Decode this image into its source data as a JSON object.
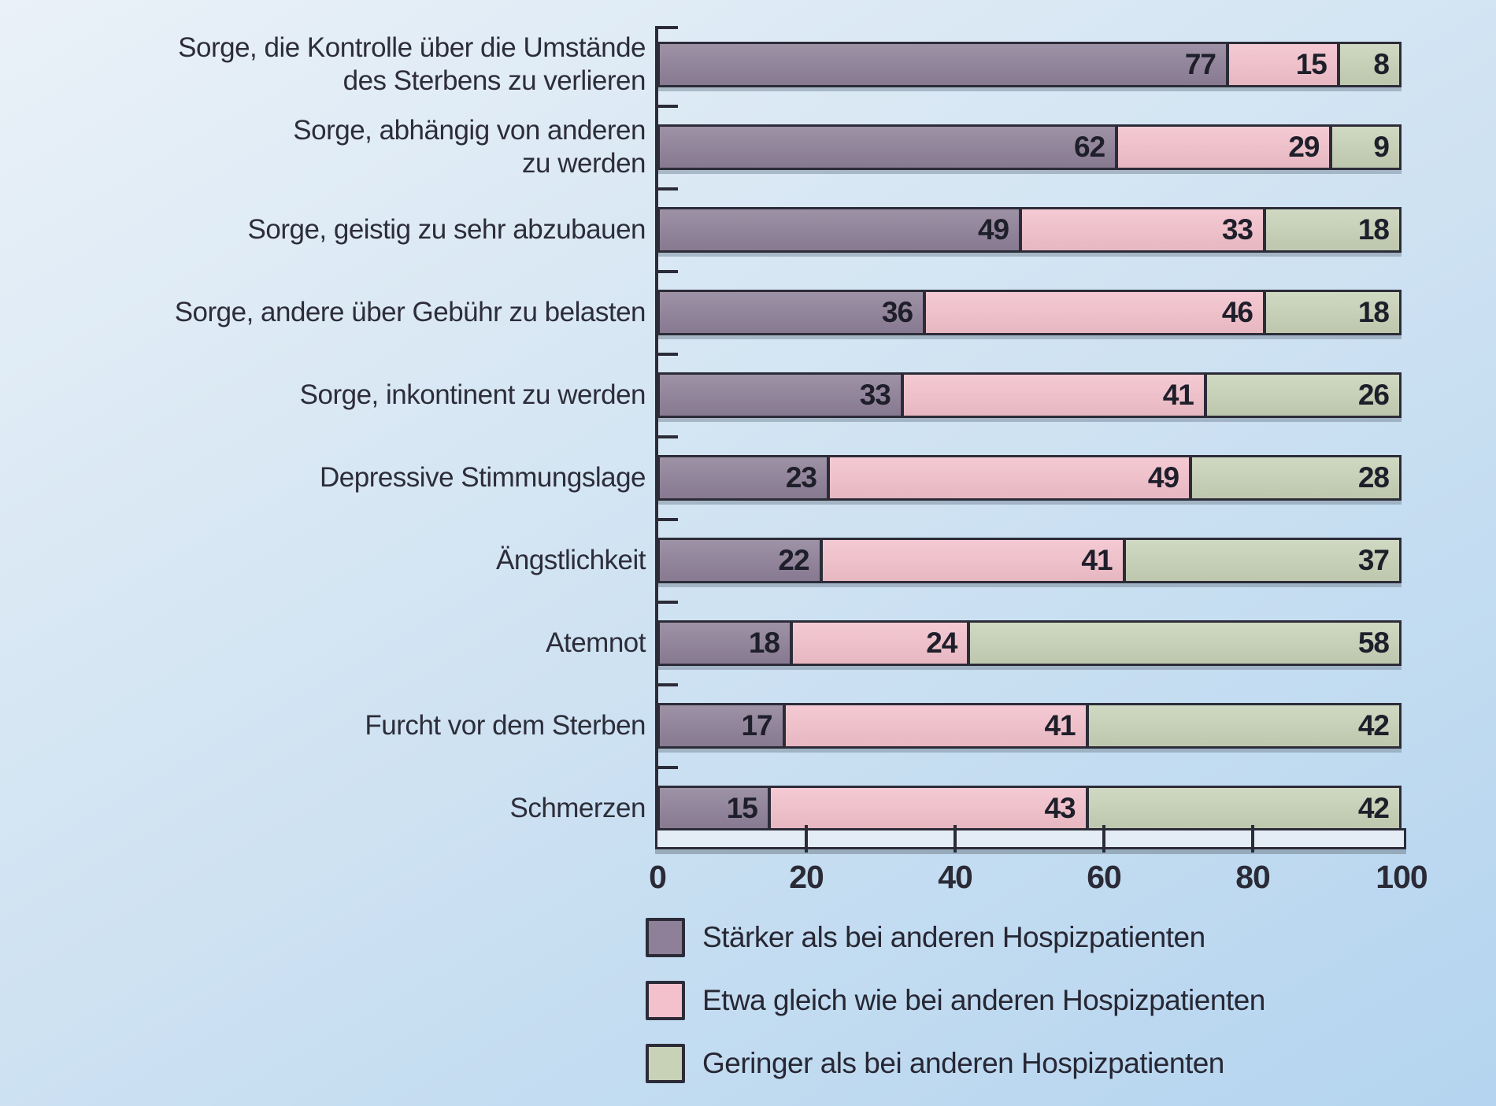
{
  "chart_data": {
    "type": "bar",
    "orientation": "horizontal",
    "stacked": true,
    "title": "",
    "xlabel": "",
    "ylabel": "",
    "xlim": [
      0,
      100
    ],
    "x_ticks": [
      "0",
      "20",
      "40",
      "60",
      "80",
      "100"
    ],
    "grid": false,
    "legend_position": "bottom-left",
    "categories": [
      "Sorge, die Kontrolle über die Umstände\ndes Sterbens zu verlieren",
      "Sorge, abhängig von anderen\nzu werden",
      "Sorge, geistig zu sehr abzubauen",
      "Sorge, andere über Gebühr zu belasten",
      "Sorge, inkontinent zu werden",
      "Depressive Stimmungslage",
      "Ängstlichkeit",
      "Atemnot",
      "Furcht vor dem Sterben",
      "Schmerzen"
    ],
    "series": [
      {
        "name": "Stärker als bei anderen Hospizpatienten",
        "color": "#8e8098",
        "values": [
          77,
          62,
          49,
          36,
          33,
          23,
          22,
          18,
          17,
          15
        ]
      },
      {
        "name": "Etwa gleich wie bei anderen Hospizpatienten",
        "color": "#f3c1cc",
        "values": [
          15,
          29,
          33,
          46,
          41,
          49,
          41,
          24,
          41,
          43
        ]
      },
      {
        "name": "Geringer als bei anderen Hospizpatienten",
        "color": "#c8d2b7",
        "values": [
          8,
          9,
          18,
          18,
          26,
          28,
          37,
          58,
          42,
          42
        ]
      }
    ],
    "colors": {
      "outline": "#2c2c38",
      "value_text": "#1e1f2a",
      "label_text": "#2d2d3a",
      "background_top": "#eaf1f8",
      "background_bottom": "#b4d4ef"
    }
  }
}
